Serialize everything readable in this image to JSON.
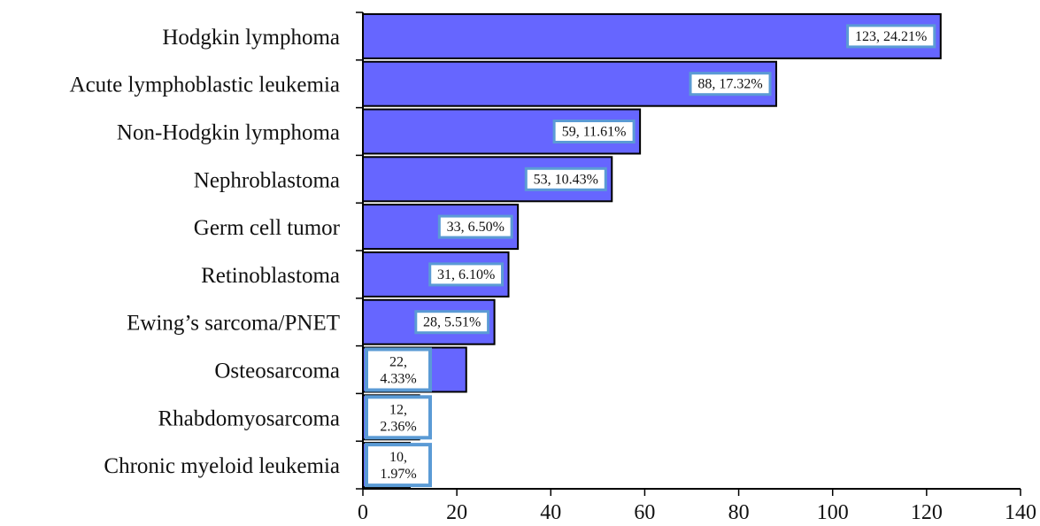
{
  "chart_data": {
    "type": "bar",
    "orientation": "horizontal",
    "title": "",
    "xlabel": "",
    "ylabel": "",
    "categories": [
      "Hodgkin lymphoma",
      "Acute lymphoblastic leukemia",
      "Non-Hodgkin lymphoma",
      "Nephroblastoma",
      "Germ cell tumor",
      "Retinoblastoma",
      "Ewing’s sarcoma/PNET",
      "Osteosarcoma",
      "Rhabdomyosarcoma",
      "Chronic myeloid leukemia"
    ],
    "values": [
      123,
      88,
      59,
      53,
      33,
      31,
      28,
      22,
      12,
      10
    ],
    "data_labels": [
      "123, 24.21%",
      "88, 17.32%",
      "59, 11.61%",
      "53, 10.43%",
      "33, 6.50%",
      "31, 6.10%",
      "28, 5.51%",
      "22, 4.33%",
      "12, 2.36%",
      "10, 1.97%"
    ],
    "xlim": [
      0,
      140
    ],
    "xticks": [
      0,
      20,
      40,
      60,
      80,
      100,
      120,
      140
    ],
    "grid": false,
    "legend": "none",
    "colors": {
      "bar_fill": "#6666FF",
      "bar_stroke": "#000000",
      "label_border": "#5B9BD5",
      "label_fill": "#FFFFFF",
      "axis": "#000000"
    }
  }
}
